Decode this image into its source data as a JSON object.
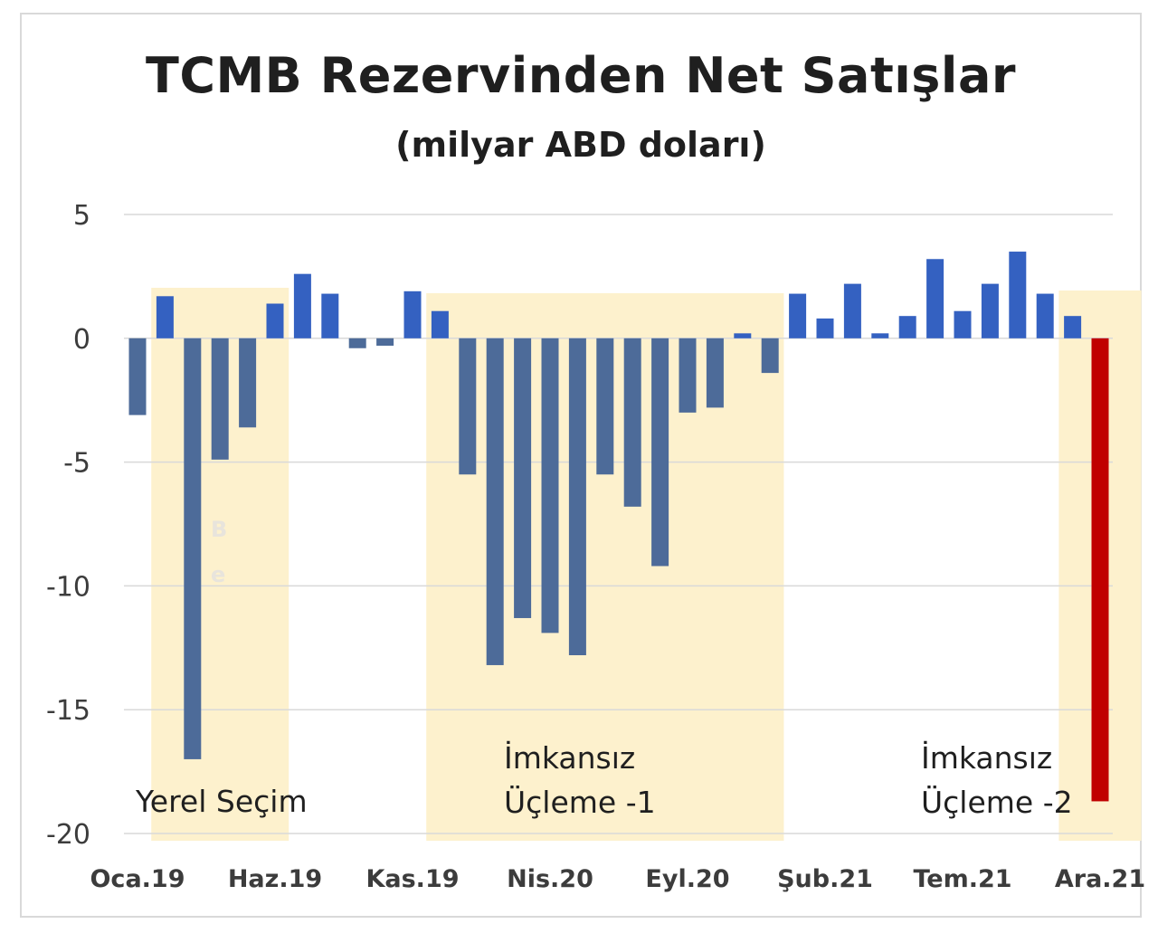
{
  "chart_data": {
    "type": "bar",
    "title": "TCMB Rezervinden Net Satışlar",
    "subtitle": "(milyar ABD doları)",
    "ylim": [
      -20,
      5
    ],
    "yticks": [
      5,
      0,
      -5,
      -10,
      -15,
      -20
    ],
    "x_tick_labels": [
      "Oca.19",
      "Haz.19",
      "Kas.19",
      "Nis.20",
      "Eyl.20",
      "Şub.21",
      "Tem.21",
      "Ara.21"
    ],
    "x_tick_indices": [
      0,
      5,
      10,
      15,
      20,
      25,
      30,
      35
    ],
    "categories": [
      "Oca.19",
      "Şub.19",
      "Mar.19",
      "Nis.19",
      "May.19",
      "Haz.19",
      "Tem.19",
      "Ağu.19",
      "Eyl.19",
      "Eki.19",
      "Kas.19",
      "Ara.19",
      "Oca.20",
      "Şub.20",
      "Mar.20",
      "Nis.20",
      "May.20",
      "Haz.20",
      "Tem.20",
      "Ağu.20",
      "Eyl.20",
      "Eki.20",
      "Kas.20",
      "Ara.20",
      "Oca.21",
      "Şub.21",
      "Mar.21",
      "Nis.21",
      "May.21",
      "Haz.21",
      "Tem.21",
      "Ağu.21",
      "Eyl.21",
      "Eki.21",
      "Kas.21",
      "Ara.21"
    ],
    "values": [
      -3.1,
      1.7,
      -17.0,
      -4.9,
      -3.6,
      1.4,
      2.6,
      1.8,
      -0.4,
      -0.3,
      1.9,
      1.1,
      -5.5,
      -13.2,
      -11.3,
      -11.9,
      -12.8,
      -5.5,
      -6.8,
      -9.2,
      -3.0,
      -2.8,
      0.2,
      -1.4,
      1.8,
      0.8,
      2.2,
      0.2,
      0.9,
      3.2,
      1.1,
      2.2,
      3.5,
      1.8,
      0.9,
      -18.7
    ],
    "highlight_index": 35,
    "colors": {
      "positive": "#3461c1",
      "negative": "#4d6b99",
      "highlight": "#c00000",
      "shade": "#fdf1cd",
      "grid": "#d9d9d9"
    },
    "shaded_regions": [
      {
        "start": 2,
        "end": 4,
        "label_lines": [
          "Yerel Seçim"
        ]
      },
      {
        "start": 12,
        "end": 22,
        "label_lines": [
          "İmkansız",
          "Üçleme -1"
        ]
      },
      {
        "start": 35,
        "end": 35,
        "label_lines": [
          "İmkansız",
          "Üçleme -2"
        ]
      }
    ],
    "fragment_text": [
      "B",
      "e"
    ]
  }
}
